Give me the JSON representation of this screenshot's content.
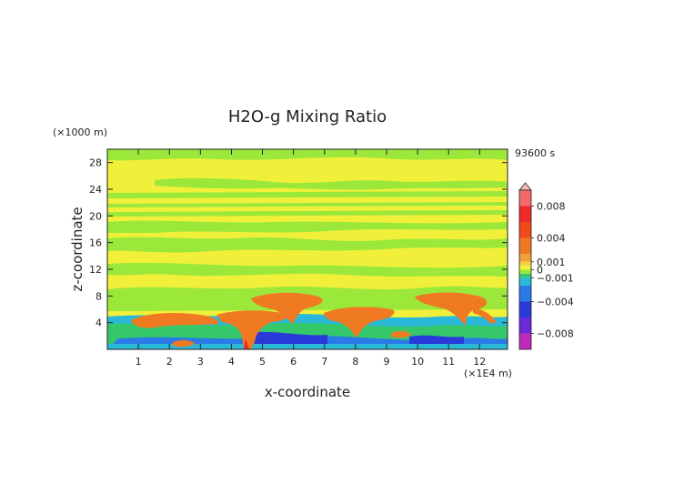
{
  "chart_data": {
    "type": "heatmap",
    "title": "H2O-g Mixing Ratio",
    "xlabel": "x-coordinate",
    "ylabel": "z-coordinate",
    "x_unit": "(×1E4 m)",
    "y_unit": "(×1000 m)",
    "time_label": "93600 s",
    "xlim": [
      0,
      12.9
    ],
    "ylim": [
      0,
      30
    ],
    "x_ticks": [
      1,
      2,
      3,
      4,
      5,
      6,
      7,
      8,
      9,
      10,
      11,
      12
    ],
    "y_ticks": [
      4,
      8,
      12,
      16,
      20,
      24,
      28
    ],
    "grid": false,
    "colorbar": {
      "labels": [
        "0.008",
        "0.004",
        "0.001",
        "0",
        "−0.001",
        "−0.004",
        "−0.008"
      ],
      "levels": [
        0.01,
        0.008,
        0.006,
        0.004,
        0.002,
        0.001,
        0.0005,
        0,
        -0.0005,
        -0.001,
        -0.002,
        -0.004,
        -0.006,
        -0.008,
        -0.01
      ],
      "colors": [
        "#f7b7b7",
        "#f26a6a",
        "#ee2a2a",
        "#f04a1a",
        "#f07a22",
        "#f2a13a",
        "#f5d23a",
        "#f0f03a",
        "#9be83a",
        "#34c86a",
        "#2ab8d8",
        "#2a7ae8",
        "#2a3ad8",
        "#6a2ad8",
        "#c02ab8",
        "#f02aa8"
      ]
    },
    "background_value_color": "#f0f03a"
  }
}
